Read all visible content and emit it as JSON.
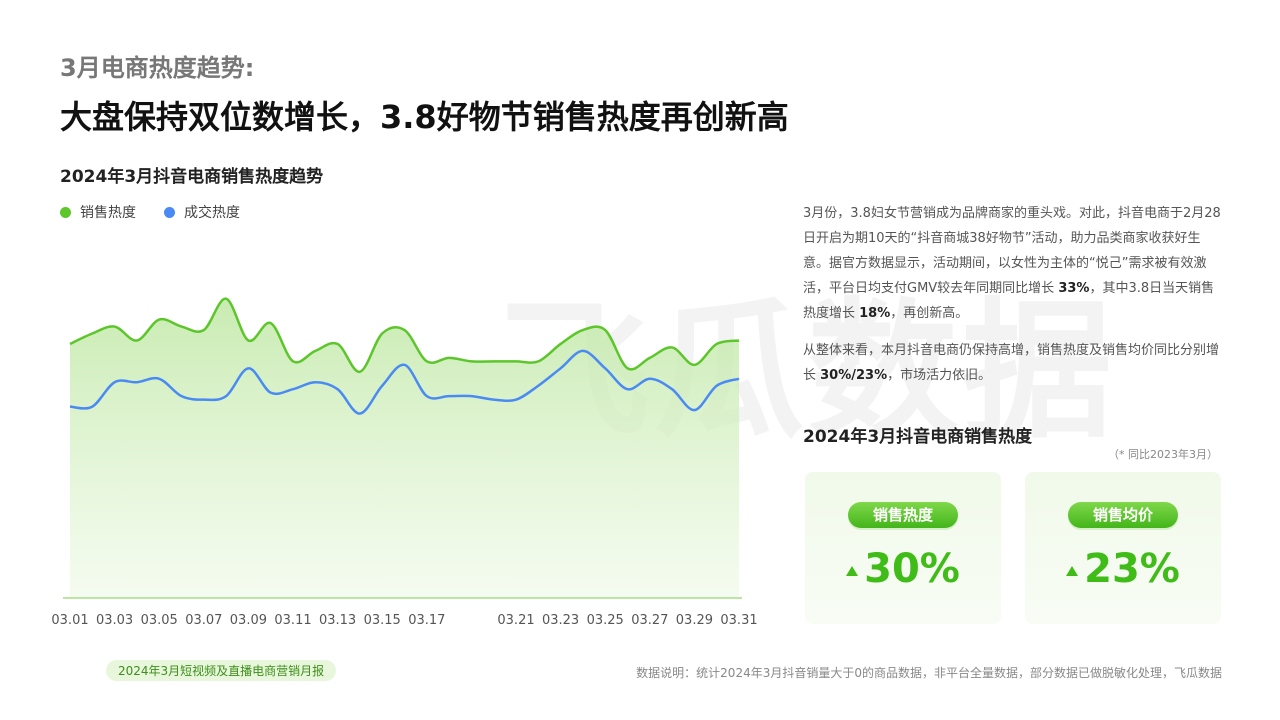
{
  "header": {
    "kicker": "3月电商热度趋势:",
    "title": "大盘保持双位数增长，3.8好物节销售热度再创新高"
  },
  "watermark": "飞瓜数据",
  "chart_data": {
    "type": "line",
    "title": "2024年3月抖音电商销售热度趋势",
    "categories": [
      "03.01",
      null,
      "03.03",
      null,
      "03.05",
      null,
      "03.07",
      null,
      "03.09",
      null,
      "03.11",
      null,
      "03.13",
      null,
      "03.15",
      null,
      "03.17",
      null,
      null,
      null,
      "03.21",
      null,
      "03.23",
      null,
      "03.25",
      null,
      "03.27",
      null,
      "03.29",
      null,
      "03.31"
    ],
    "series": [
      {
        "name": "销售热度",
        "color": "#5cc62b",
        "values": [
          73,
          76,
          78,
          74,
          80,
          78,
          77,
          86,
          74,
          79,
          68,
          71,
          73,
          65,
          76,
          77,
          68,
          69,
          68,
          68,
          68,
          68,
          73,
          77,
          77,
          66,
          69,
          72,
          67,
          73,
          74
        ]
      },
      {
        "name": "成交热度",
        "color": "#4a8af4",
        "values": [
          55,
          55,
          62,
          62,
          63,
          58,
          57,
          58,
          66,
          59,
          60,
          62,
          60,
          53,
          61,
          67,
          58,
          58,
          58,
          57,
          57,
          61,
          66,
          71,
          66,
          60,
          63,
          60,
          54,
          61,
          63
        ]
      }
    ]
  },
  "sidebar": {
    "paragraphs": [
      [
        "3月份，3.8妇女节营销成为品牌商家的重头戏。对此，抖音电商于2月28日开启为期10天的“抖音商城38好物节”活动，助力品类商家收获好生意。据官方数据显示，活动期间，以女性为主体的“悦己”需求被有效激活，平台日均支付GMV较去年同期同比增长 ",
        "33%",
        "，其中3.8日当天销售热度增长 ",
        "18%",
        "，再创新高。"
      ],
      [
        "从整体来看，本月抖音电商仍保持高增，销售热度及销售均价同比分别增长 ",
        "30%/23%",
        "，市场活力依旧。"
      ]
    ],
    "stats_title": "2024年3月抖音电商销售热度",
    "stats_note": "（* 同比2023年3月）",
    "cards": [
      {
        "label": "销售热度",
        "value": "30%"
      },
      {
        "label": "销售均价",
        "value": "23%"
      }
    ]
  },
  "footer": {
    "tag": "2024年3月短视频及直播电商营销月报",
    "source": "数据说明：统计2024年3月抖音销量大于0的商品数据，非平台全量数据，部分数据已做脱敏化处理，飞瓜数据"
  }
}
